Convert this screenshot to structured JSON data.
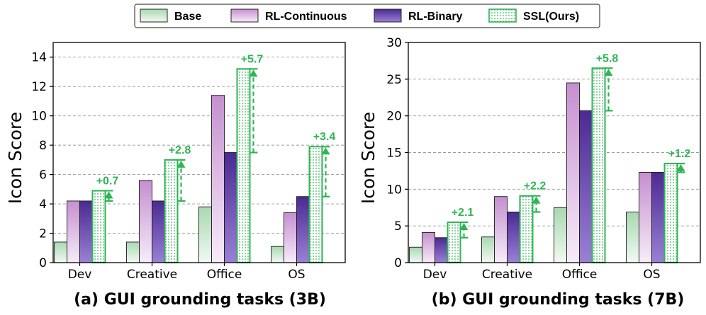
{
  "legend": [
    {
      "key": "base",
      "label": "Base"
    },
    {
      "key": "rlc",
      "label": "RL-Continuous"
    },
    {
      "key": "rlb",
      "label": "RL-Binary"
    },
    {
      "key": "ssl",
      "label": "SSL(Ours)"
    }
  ],
  "colors": {
    "base_top": "#a9d8b0",
    "base_bottom": "#f1faf2",
    "rlc_top": "#c58fd0",
    "rlc_bottom": "#f7ecf9",
    "rlb_top": "#4b2a92",
    "rlb_bottom": "#9a80d6",
    "ssl_edge": "#2fb555",
    "ssl_dot": "#39b85c",
    "annot": "#2fb555",
    "grid": "#9a9a9a"
  },
  "chart_data": [
    {
      "type": "bar",
      "ylabel": "Icon Score",
      "caption": "(a) GUI grounding tasks (3B)",
      "categories": [
        "Dev",
        "Creative",
        "Office",
        "OS"
      ],
      "ylim": [
        0,
        15
      ],
      "yticks": [
        0,
        2,
        4,
        6,
        8,
        10,
        12,
        14
      ],
      "grid": true,
      "series": [
        {
          "name": "Base",
          "values": [
            1.4,
            1.4,
            3.8,
            1.1
          ]
        },
        {
          "name": "RL-Continuous",
          "values": [
            4.2,
            5.6,
            11.4,
            3.4
          ]
        },
        {
          "name": "RL-Binary",
          "values": [
            4.2,
            4.2,
            7.5,
            4.5
          ]
        },
        {
          "name": "SSL(Ours)",
          "values": [
            4.9,
            7.0,
            13.2,
            7.9
          ]
        }
      ],
      "annotations": [
        "+0.7",
        "+2.8",
        "+5.7",
        "+3.4"
      ],
      "annotation_from": [
        4.2,
        4.2,
        7.5,
        4.5
      ]
    },
    {
      "type": "bar",
      "ylabel": "Icon Score",
      "caption": "(b) GUI grounding tasks (7B)",
      "categories": [
        "Dev",
        "Creative",
        "Office",
        "OS"
      ],
      "ylim": [
        0,
        30
      ],
      "yticks": [
        0,
        5,
        10,
        15,
        20,
        25,
        30
      ],
      "grid": true,
      "series": [
        {
          "name": "Base",
          "values": [
            2.1,
            3.5,
            7.5,
            6.9
          ]
        },
        {
          "name": "RL-Continuous",
          "values": [
            4.1,
            9.0,
            24.5,
            12.3
          ]
        },
        {
          "name": "RL-Binary",
          "values": [
            3.4,
            6.9,
            20.7,
            12.3
          ]
        },
        {
          "name": "SSL(Ours)",
          "values": [
            5.5,
            9.1,
            26.5,
            13.5
          ]
        }
      ],
      "annotations": [
        "+2.1",
        "+2.2",
        "+5.8",
        "+1.2"
      ],
      "annotation_from": [
        3.4,
        6.9,
        20.7,
        12.3
      ]
    }
  ]
}
